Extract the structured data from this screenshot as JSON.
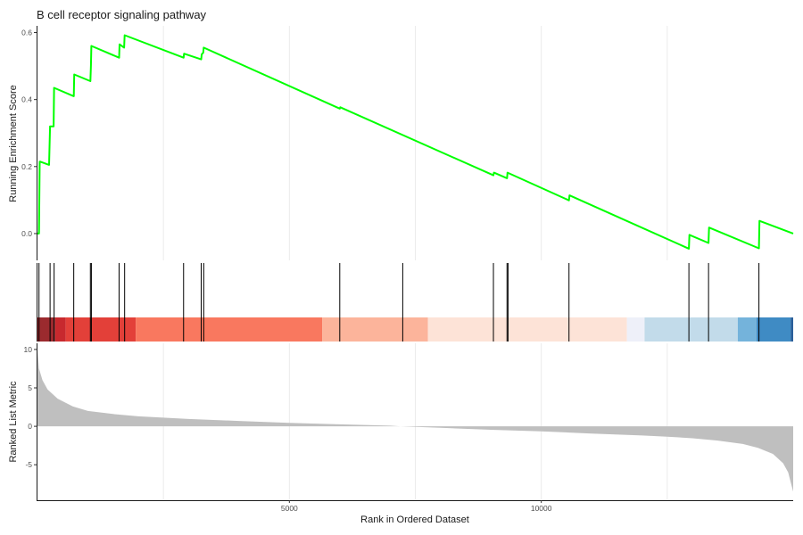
{
  "chart_data": {
    "type": "line",
    "title": "B cell receptor signaling pathway",
    "xlabel": "Rank in Ordered Dataset",
    "x_range": [
      0,
      15000
    ],
    "x_ticks": [
      5000,
      10000
    ],
    "x_tick_labels": [
      "5000",
      "10000"
    ],
    "panels": {
      "enrichment": {
        "ylabel": "Running Enrichment Score",
        "ylim": [
          -0.08,
          0.62
        ],
        "y_ticks": [
          0.0,
          0.2,
          0.4,
          0.6
        ],
        "y_tick_labels": [
          "0.0",
          "0.2",
          "0.4",
          "0.6"
        ],
        "line_color": "#00ff00",
        "series": [
          {
            "x": [
              0,
              30,
              45,
              50,
              230,
              250,
              260,
              320,
              330,
              720,
              730,
              1050,
              1060,
              1070,
              1620,
              1630,
              1720,
              1730,
              2900,
              2910,
              3250,
              3260,
              3290,
              3300,
              6000,
              6010,
              9050,
              9060,
              9320,
              9330,
              10550,
              10560,
              12930,
              12940,
              13320,
              13330,
              14320,
              14330,
              15000
            ],
            "y": [
              0.0,
              0.0,
              0.215,
              0.215,
              0.205,
              0.32,
              0.32,
              0.32,
              0.435,
              0.41,
              0.475,
              0.455,
              0.5,
              0.56,
              0.525,
              0.565,
              0.555,
              0.592,
              0.525,
              0.537,
              0.52,
              0.535,
              0.54,
              0.555,
              0.373,
              0.377,
              0.174,
              0.182,
              0.165,
              0.182,
              0.099,
              0.114,
              -0.045,
              -0.004,
              -0.028,
              0.018,
              -0.044,
              0.038,
              0.0
            ]
          }
        ]
      },
      "hits": {
        "positions": [
          30,
          250,
          330,
          720,
          1050,
          1070,
          1620,
          1730,
          2900,
          3250,
          3300,
          6000,
          7250,
          9050,
          9320,
          9340,
          10550,
          12930,
          13320,
          14320
        ]
      },
      "heat_bar": {
        "segments": [
          {
            "start": 0,
            "end": 350,
            "color": "#9b2a2e"
          },
          {
            "start": 350,
            "end": 560,
            "color": "#c8292e"
          },
          {
            "start": 560,
            "end": 1950,
            "color": "#e34039"
          },
          {
            "start": 1950,
            "end": 5650,
            "color": "#f9785f"
          },
          {
            "start": 5650,
            "end": 7750,
            "color": "#fcb49b"
          },
          {
            "start": 7750,
            "end": 11700,
            "color": "#fde3d7"
          },
          {
            "start": 11700,
            "end": 12050,
            "color": "#eef0f9"
          },
          {
            "start": 12050,
            "end": 13900,
            "color": "#c2dbea"
          },
          {
            "start": 13900,
            "end": 14270,
            "color": "#74b3db"
          },
          {
            "start": 14270,
            "end": 14950,
            "color": "#3f8bc4"
          },
          {
            "start": 14950,
            "end": 15000,
            "color": "#2a5f9a"
          }
        ]
      },
      "ranked": {
        "ylabel": "Ranked List Metric",
        "ylim": [
          -9.5,
          10.8
        ],
        "y_ticks": [
          -5,
          0,
          5,
          10
        ],
        "y_tick_labels": [
          "-5",
          "0",
          "5",
          "10"
        ],
        "fill_color": "#bfbfbf",
        "x": [
          0,
          30,
          100,
          200,
          400,
          700,
          1000,
          1500,
          2000,
          3000,
          4000,
          5000,
          6000,
          7000,
          7200,
          8000,
          9000,
          10000,
          11000,
          12000,
          12500,
          13000,
          13500,
          14000,
          14300,
          14600,
          14800,
          14900,
          14960,
          15000
        ],
        "y": [
          10.0,
          7.5,
          6.0,
          4.8,
          3.6,
          2.6,
          2.0,
          1.6,
          1.3,
          0.95,
          0.7,
          0.45,
          0.25,
          0.08,
          0.0,
          -0.2,
          -0.45,
          -0.65,
          -0.95,
          -1.2,
          -1.35,
          -1.55,
          -1.85,
          -2.3,
          -2.8,
          -3.6,
          -4.8,
          -6.0,
          -7.5,
          -8.5
        ]
      }
    }
  }
}
